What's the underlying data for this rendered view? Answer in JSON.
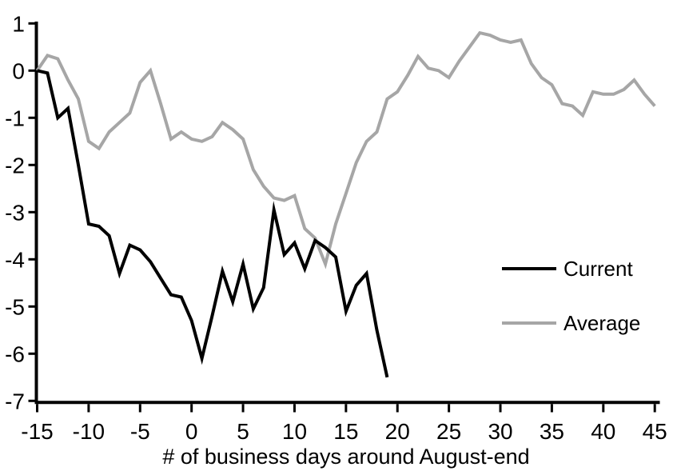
{
  "chart_data": {
    "type": "line",
    "title": "",
    "xlabel": "# of business days around August-end",
    "ylabel": "",
    "xlim": [
      -15,
      45
    ],
    "ylim": [
      -7,
      1
    ],
    "x_ticks": [
      -15,
      -10,
      -5,
      0,
      5,
      10,
      15,
      20,
      25,
      30,
      35,
      40,
      45
    ],
    "y_ticks": [
      1,
      0,
      -1,
      -2,
      -3,
      -4,
      -5,
      -6,
      -7
    ],
    "grid": false,
    "legend_position": "middle-right",
    "axis_color": "#000000",
    "background_color": "#ffffff",
    "series": [
      {
        "name": "Current",
        "color": "#000000",
        "line_width": 4,
        "x": [
          -15,
          -14,
          -13,
          -12,
          -11,
          -10,
          -9,
          -8,
          -7,
          -6,
          -5,
          -4,
          -3,
          -2,
          -1,
          0,
          1,
          2,
          3,
          4,
          5,
          6,
          7,
          8,
          9,
          10,
          11,
          12,
          13,
          14,
          15,
          16,
          17,
          18,
          19
        ],
        "values": [
          0,
          -0.05,
          -1.0,
          -0.8,
          -2.0,
          -3.25,
          -3.3,
          -3.5,
          -4.3,
          -3.7,
          -3.8,
          -4.05,
          -4.4,
          -4.75,
          -4.8,
          -5.3,
          -6.1,
          -5.2,
          -4.25,
          -4.9,
          -4.1,
          -5.05,
          -4.6,
          -2.95,
          -3.9,
          -3.65,
          -4.2,
          -3.6,
          -3.75,
          -3.95,
          -5.1,
          -4.55,
          -4.3,
          -5.5,
          -6.5
        ]
      },
      {
        "name": "Average",
        "color": "#a6a6a6",
        "line_width": 4,
        "x": [
          -15,
          -14,
          -13,
          -12,
          -11,
          -10,
          -9,
          -8,
          -7,
          -6,
          -5,
          -4,
          -3,
          -2,
          -1,
          0,
          1,
          2,
          3,
          4,
          5,
          6,
          7,
          8,
          9,
          10,
          11,
          12,
          13,
          14,
          15,
          16,
          17,
          18,
          19,
          20,
          21,
          22,
          23,
          24,
          25,
          26,
          27,
          28,
          29,
          30,
          31,
          32,
          33,
          34,
          35,
          36,
          37,
          38,
          39,
          40,
          41,
          42,
          43,
          44,
          45
        ],
        "values": [
          0,
          0.32,
          0.25,
          -0.2,
          -0.6,
          -1.5,
          -1.65,
          -1.3,
          -1.1,
          -0.9,
          -0.25,
          0,
          -0.7,
          -1.45,
          -1.3,
          -1.45,
          -1.5,
          -1.4,
          -1.1,
          -1.25,
          -1.45,
          -2.1,
          -2.45,
          -2.7,
          -2.75,
          -2.65,
          -3.35,
          -3.55,
          -4.1,
          -3.25,
          -2.6,
          -1.95,
          -1.5,
          -1.3,
          -0.6,
          -0.45,
          -0.1,
          0.3,
          0.05,
          0,
          -0.15,
          0.2,
          0.5,
          0.8,
          0.75,
          0.65,
          0.6,
          0.65,
          0.15,
          -0.15,
          -0.3,
          -0.7,
          -0.75,
          -0.95,
          -0.45,
          -0.5,
          -0.5,
          -0.4,
          -0.2,
          -0.5,
          -0.75
        ]
      }
    ]
  }
}
